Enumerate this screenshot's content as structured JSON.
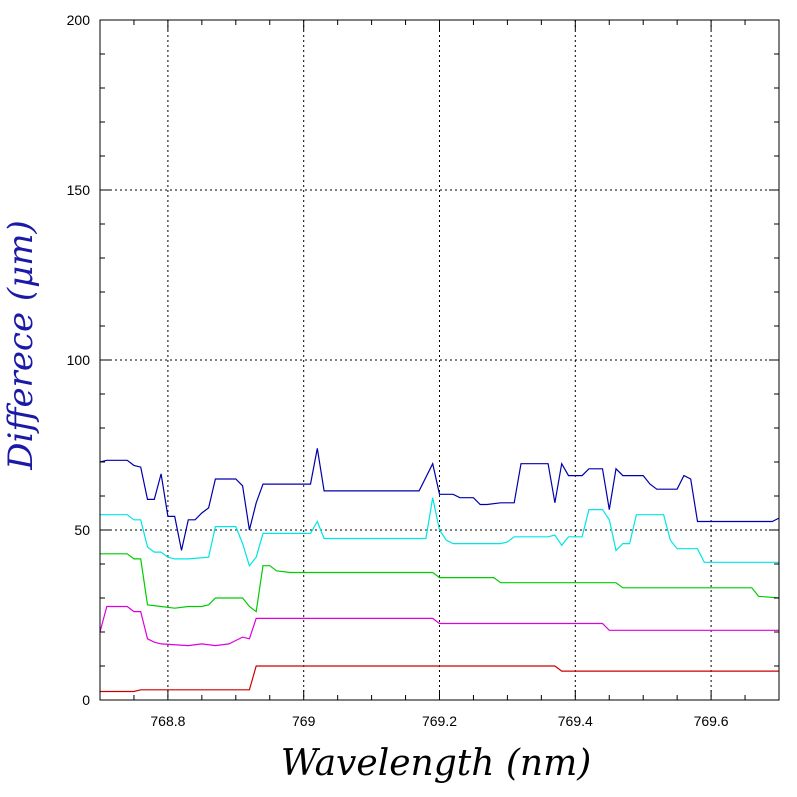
{
  "chart_data": {
    "type": "line",
    "title": "",
    "xlabel": "Wavelength (nm)",
    "ylabel": "Differece (μm)",
    "xlim": [
      768.7,
      769.7
    ],
    "ylim": [
      0,
      200
    ],
    "x_ticks": [
      768.8,
      769.0,
      769.2,
      769.4,
      769.6
    ],
    "x_tick_labels": [
      "768.8",
      "769",
      "769.2",
      "769.4",
      "769.6"
    ],
    "y_ticks": [
      0,
      50,
      100,
      150,
      200
    ],
    "y_tick_labels": [
      "0",
      "50",
      "100",
      "150",
      "200"
    ],
    "grid": true,
    "series": [
      {
        "color": "#0000aa",
        "points": [
          [
            768.7,
            70
          ],
          [
            768.71,
            70.5
          ],
          [
            768.73,
            70.5
          ],
          [
            768.74,
            70.5
          ],
          [
            768.75,
            69
          ],
          [
            768.76,
            68.5
          ],
          [
            768.77,
            59
          ],
          [
            768.78,
            59
          ],
          [
            768.79,
            66.5
          ],
          [
            768.8,
            54
          ],
          [
            768.81,
            54
          ],
          [
            768.82,
            44
          ],
          [
            768.83,
            53
          ],
          [
            768.84,
            53
          ],
          [
            768.85,
            55
          ],
          [
            768.86,
            56.5
          ],
          [
            768.87,
            65
          ],
          [
            768.89,
            65
          ],
          [
            768.9,
            65
          ],
          [
            768.91,
            63
          ],
          [
            768.92,
            50
          ],
          [
            768.93,
            58
          ],
          [
            768.94,
            63.5
          ],
          [
            768.96,
            63.5
          ],
          [
            769.01,
            63.5
          ],
          [
            769.02,
            74
          ],
          [
            769.03,
            61.5
          ],
          [
            769.17,
            61.5
          ],
          [
            769.19,
            69.5
          ],
          [
            769.2,
            60.5
          ],
          [
            769.22,
            60.5
          ],
          [
            769.23,
            59.5
          ],
          [
            769.25,
            59.5
          ],
          [
            769.26,
            57.5
          ],
          [
            769.27,
            57.5
          ],
          [
            769.29,
            58
          ],
          [
            769.31,
            58
          ],
          [
            769.32,
            69.5
          ],
          [
            769.36,
            69.5
          ],
          [
            769.37,
            58
          ],
          [
            769.38,
            69.5
          ],
          [
            769.39,
            66
          ],
          [
            769.41,
            66
          ],
          [
            769.42,
            68
          ],
          [
            769.44,
            68
          ],
          [
            769.45,
            56
          ],
          [
            769.46,
            68
          ],
          [
            769.47,
            66
          ],
          [
            769.5,
            66
          ],
          [
            769.51,
            63.5
          ],
          [
            769.52,
            62
          ],
          [
            769.55,
            62
          ],
          [
            769.56,
            66
          ],
          [
            769.57,
            65
          ],
          [
            769.58,
            52.5
          ],
          [
            769.69,
            52.5
          ],
          [
            769.7,
            53.5
          ]
        ]
      },
      {
        "color": "#00e5e5",
        "points": [
          [
            768.7,
            54.5
          ],
          [
            768.74,
            54.5
          ],
          [
            768.75,
            53
          ],
          [
            768.76,
            53
          ],
          [
            768.77,
            45
          ],
          [
            768.78,
            43.5
          ],
          [
            768.79,
            43.5
          ],
          [
            768.8,
            42
          ],
          [
            768.81,
            41.5
          ],
          [
            768.83,
            41.5
          ],
          [
            768.86,
            42
          ],
          [
            768.87,
            51
          ],
          [
            768.9,
            51
          ],
          [
            768.91,
            46
          ],
          [
            768.92,
            39.5
          ],
          [
            768.93,
            42
          ],
          [
            768.94,
            49
          ],
          [
            769.01,
            49
          ],
          [
            769.02,
            52.5
          ],
          [
            769.03,
            47.5
          ],
          [
            769.18,
            47.5
          ],
          [
            769.19,
            59.5
          ],
          [
            769.2,
            50
          ],
          [
            769.21,
            47
          ],
          [
            769.22,
            46
          ],
          [
            769.29,
            46
          ],
          [
            769.3,
            46.5
          ],
          [
            769.31,
            48
          ],
          [
            769.36,
            48
          ],
          [
            769.37,
            48.5
          ],
          [
            769.38,
            45.5
          ],
          [
            769.39,
            48
          ],
          [
            769.41,
            48
          ],
          [
            769.42,
            56
          ],
          [
            769.44,
            56
          ],
          [
            769.45,
            53
          ],
          [
            769.46,
            44
          ],
          [
            769.47,
            46
          ],
          [
            769.48,
            46
          ],
          [
            769.49,
            54.5
          ],
          [
            769.53,
            54.5
          ],
          [
            769.54,
            47
          ],
          [
            769.55,
            44.5
          ],
          [
            769.58,
            44.5
          ],
          [
            769.59,
            40.5
          ],
          [
            769.7,
            40.5
          ]
        ]
      },
      {
        "color": "#00cc00",
        "points": [
          [
            768.7,
            43
          ],
          [
            768.74,
            43
          ],
          [
            768.75,
            41.5
          ],
          [
            768.76,
            41.5
          ],
          [
            768.77,
            28
          ],
          [
            768.79,
            27.5
          ],
          [
            768.81,
            27
          ],
          [
            768.83,
            27.5
          ],
          [
            768.85,
            27.5
          ],
          [
            768.86,
            28
          ],
          [
            768.87,
            30
          ],
          [
            768.91,
            30
          ],
          [
            768.92,
            27.5
          ],
          [
            768.93,
            26
          ],
          [
            768.94,
            39.5
          ],
          [
            768.95,
            39.5
          ],
          [
            768.96,
            38
          ],
          [
            768.98,
            37.5
          ],
          [
            769.19,
            37.5
          ],
          [
            769.2,
            36
          ],
          [
            769.28,
            36
          ],
          [
            769.29,
            34.5
          ],
          [
            769.46,
            34.5
          ],
          [
            769.47,
            33
          ],
          [
            769.66,
            33
          ],
          [
            769.67,
            30.5
          ],
          [
            769.7,
            30
          ]
        ]
      },
      {
        "color": "#dd00dd",
        "points": [
          [
            768.7,
            20
          ],
          [
            768.71,
            27.5
          ],
          [
            768.74,
            27.5
          ],
          [
            768.75,
            26
          ],
          [
            768.76,
            26
          ],
          [
            768.77,
            18
          ],
          [
            768.78,
            17
          ],
          [
            768.79,
            16.5
          ],
          [
            768.83,
            16
          ],
          [
            768.85,
            16.5
          ],
          [
            768.87,
            16
          ],
          [
            768.89,
            16.5
          ],
          [
            768.9,
            17.5
          ],
          [
            768.91,
            18.5
          ],
          [
            768.92,
            18
          ],
          [
            768.93,
            24
          ],
          [
            769.19,
            24
          ],
          [
            769.2,
            22.5
          ],
          [
            769.44,
            22.5
          ],
          [
            769.45,
            20.5
          ],
          [
            769.7,
            20.5
          ]
        ]
      },
      {
        "color": "#cc0000",
        "points": [
          [
            768.7,
            2.5
          ],
          [
            768.75,
            2.5
          ],
          [
            768.76,
            3
          ],
          [
            768.92,
            3
          ],
          [
            768.93,
            10
          ],
          [
            769.37,
            10
          ],
          [
            769.38,
            8.5
          ],
          [
            769.7,
            8.5
          ]
        ]
      }
    ]
  }
}
